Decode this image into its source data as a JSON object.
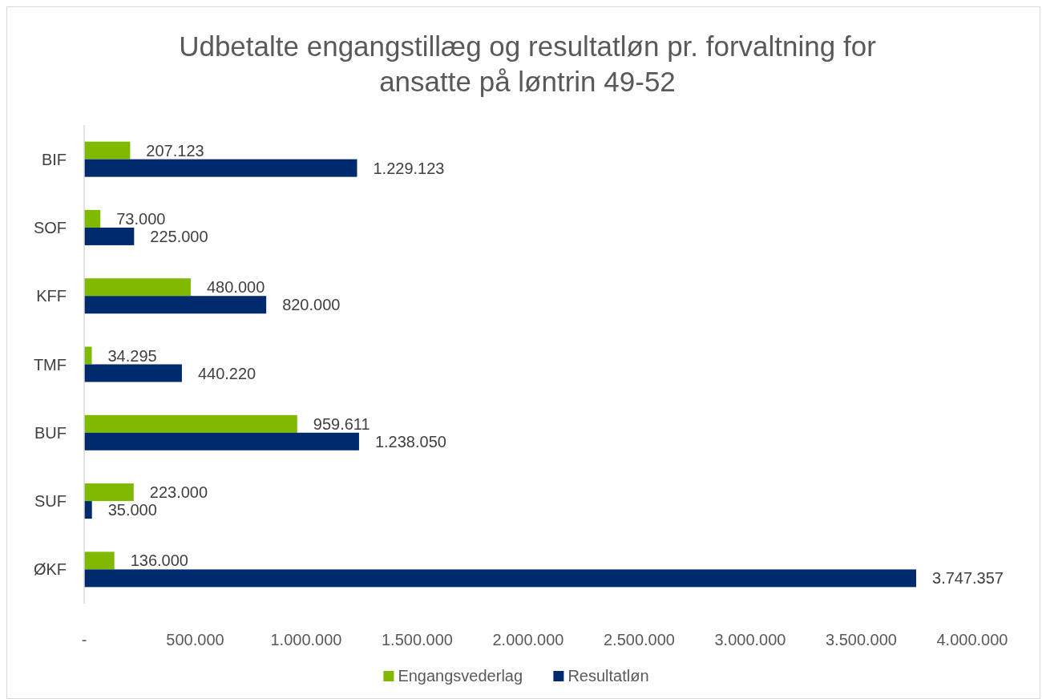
{
  "chart_data": {
    "type": "bar",
    "orientation": "horizontal",
    "title": "Udbetalte engangstillæg og resultatløn pr. forvaltning for ansatte på løntrin 49-52",
    "categories": [
      "BIF",
      "SOF",
      "KFF",
      "TMF",
      "BUF",
      "SUF",
      "ØKF"
    ],
    "series": [
      {
        "name": "Engangsvederlag",
        "color": "#7fba00",
        "values": [
          207123,
          73000,
          480000,
          34295,
          959611,
          223000,
          136000
        ],
        "value_labels": [
          "207.123",
          "73.000",
          "480.000",
          "34.295",
          "959.611",
          "223.000",
          "136.000"
        ]
      },
      {
        "name": "Resultatløn",
        "color": "#002a6e",
        "values": [
          1229123,
          225000,
          820000,
          440220,
          1238050,
          35000,
          3747357
        ],
        "value_labels": [
          "1.229.123",
          "225.000",
          "820.000",
          "440.220",
          "1.238.050",
          "35.000",
          "3.747.357"
        ]
      }
    ],
    "xlim": [
      0,
      4000000
    ],
    "xticks": [
      {
        "value": 0,
        "label": "-"
      },
      {
        "value": 500000,
        "label": "500.000"
      },
      {
        "value": 1000000,
        "label": "1.000.000"
      },
      {
        "value": 1500000,
        "label": "1.500.000"
      },
      {
        "value": 2000000,
        "label": "2.000.000"
      },
      {
        "value": 2500000,
        "label": "2.500.000"
      },
      {
        "value": 3000000,
        "label": "3.000.000"
      },
      {
        "value": 3500000,
        "label": "3.500.000"
      },
      {
        "value": 4000000,
        "label": "4.000.000"
      }
    ],
    "grid": false,
    "legend": "bottom"
  }
}
